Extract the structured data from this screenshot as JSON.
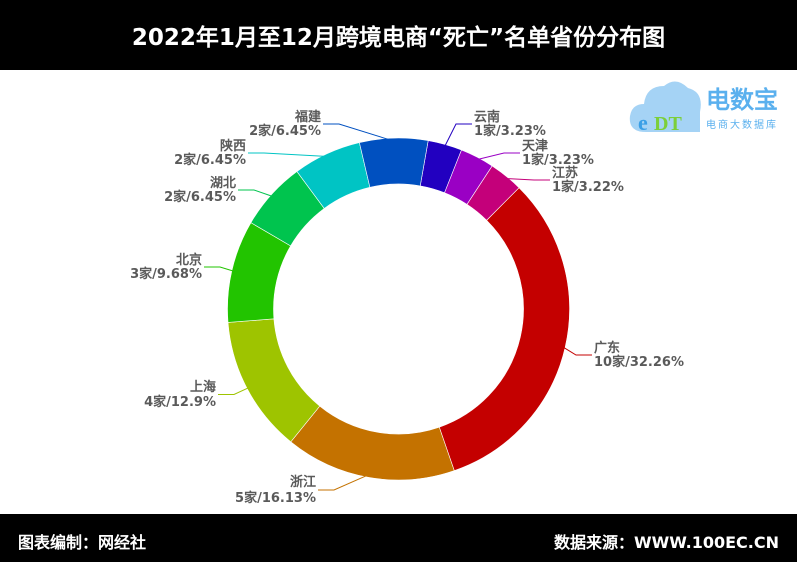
{
  "header": {
    "title": "2022年1月至12月跨境电商“死亡”名单省份分布图"
  },
  "footer": {
    "left": "图表编制：网经社",
    "right": "数据来源：WWW.100EC.CN"
  },
  "logo": {
    "mark": "eDT",
    "name": "电数宝",
    "sub": "电商大数据库"
  },
  "chart_data": {
    "type": "pie",
    "donut": true,
    "title": "2022年1月至12月跨境电商“死亡”名单省份分布图",
    "unit": "家",
    "slices": [
      {
        "name": "云南",
        "value": 1,
        "percent": "3.23%",
        "label": "1家/3.23%",
        "color": "#2200c0"
      },
      {
        "name": "天津",
        "value": 1,
        "percent": "3.23%",
        "label": "1家/3.23%",
        "color": "#9a00c4"
      },
      {
        "name": "江苏",
        "value": 1,
        "percent": "3.22%",
        "label": "1家/3.22%",
        "color": "#c4007a"
      },
      {
        "name": "广东",
        "value": 10,
        "percent": "32.26%",
        "label": "10家/32.26%",
        "color": "#c40000"
      },
      {
        "name": "浙江",
        "value": 5,
        "percent": "16.13%",
        "label": "5家/16.13%",
        "color": "#c47200"
      },
      {
        "name": "上海",
        "value": 4,
        "percent": "12.9%",
        "label": "4家/12.9%",
        "color": "#9ec400"
      },
      {
        "name": "北京",
        "value": 3,
        "percent": "9.68%",
        "label": "3家/9.68%",
        "color": "#22c400"
      },
      {
        "name": "湖北",
        "value": 2,
        "percent": "6.45%",
        "label": "2家/6.45%",
        "color": "#00c44e"
      },
      {
        "name": "陕西",
        "value": 2,
        "percent": "6.45%",
        "label": "2家/6.45%",
        "color": "#00c4c4"
      },
      {
        "name": "福建",
        "value": 2,
        "percent": "6.45%",
        "label": "2家/6.45%",
        "color": "#0050c0"
      }
    ]
  }
}
